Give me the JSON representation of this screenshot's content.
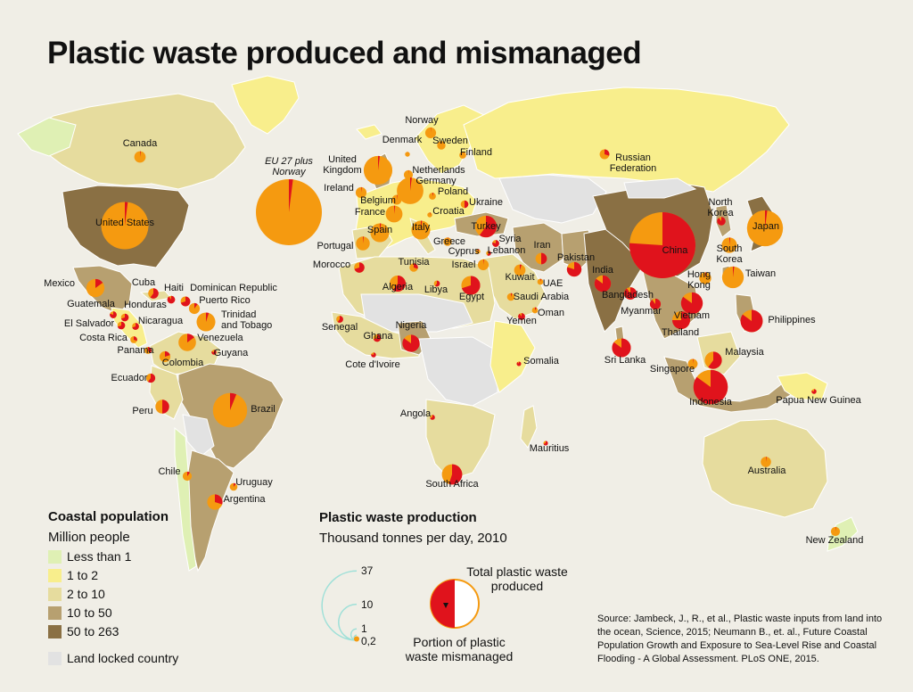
{
  "title": "Plastic waste produced and mismanaged",
  "colors": {
    "background": "#f0eee6",
    "ocean": "#f0eee6",
    "waste_total": "#f59a10",
    "waste_mismanaged": "#e0131c",
    "scale_arc": "#9fe0d8"
  },
  "coastal_legend": {
    "heading": "Coastal population",
    "unit": "Million people",
    "classes": [
      {
        "label": "Less than 1",
        "color": "#dff0b4"
      },
      {
        "label": "1 to 2",
        "color": "#f8ee8c"
      },
      {
        "label": "2 to 10",
        "color": "#e6dc9e"
      },
      {
        "label": "10 to 50",
        "color": "#b7a070"
      },
      {
        "label": "50 to 263",
        "color": "#8a7044"
      },
      {
        "label": "Land locked country",
        "color": "#e2e2e2"
      }
    ]
  },
  "production_legend": {
    "heading": "Plastic waste production",
    "unit": "Thousand tonnes per day, 2010",
    "scale_values": [
      "37",
      "10",
      "1",
      "0,2"
    ],
    "total_label_1": "Total plastic waste",
    "total_label_2": "produced",
    "mismanaged_label_1": "Portion of plastic",
    "mismanaged_label_2": "waste mismanaged"
  },
  "source": {
    "text": "Source: Jambeck, J., R., et al., Plastic waste inputs from land into the ocean, Science, 2015; Neumann B., et. al., Future Coastal Population Growth and Exposure to Sea-Level Rise and Coastal Flooding - A Global Assessment. PLoS ONE, 2015."
  },
  "countries": [
    {
      "name": "Canada",
      "total": 1.1,
      "mismanaged": 0.02
    },
    {
      "name": "United States",
      "total": 19.0,
      "mismanaged": 0.02
    },
    {
      "name": "EU 27 plus Norway",
      "total": 37.0,
      "mismanaged": 0.02
    },
    {
      "name": "Mexico",
      "total": 2.8,
      "mismanaged": 0.15
    },
    {
      "name": "Cuba",
      "total": 0.9,
      "mismanaged": 0.6
    },
    {
      "name": "Haiti",
      "total": 0.5,
      "mismanaged": 0.9
    },
    {
      "name": "Dominican Republic",
      "total": 0.8,
      "mismanaged": 0.7
    },
    {
      "name": "Puerto Rico",
      "total": 1.0,
      "mismanaged": 0.1
    },
    {
      "name": "Guatemala",
      "total": 0.4,
      "mismanaged": 0.8
    },
    {
      "name": "Honduras",
      "total": 0.5,
      "mismanaged": 0.7
    },
    {
      "name": "Nicaragua",
      "total": 0.4,
      "mismanaged": 0.7
    },
    {
      "name": "Trinidad and Tobago",
      "total": 3.0,
      "mismanaged": 0.05
    },
    {
      "name": "El Salvador",
      "total": 0.5,
      "mismanaged": 0.7
    },
    {
      "name": "Costa Rica",
      "total": 0.4,
      "mismanaged": 0.3
    },
    {
      "name": "Venezuela",
      "total": 2.6,
      "mismanaged": 0.15
    },
    {
      "name": "Panama",
      "total": 0.4,
      "mismanaged": 0.4
    },
    {
      "name": "Guyana",
      "total": 0.2,
      "mismanaged": 0.8
    },
    {
      "name": "Colombia",
      "total": 1.0,
      "mismanaged": 0.2
    },
    {
      "name": "Ecuador",
      "total": 0.7,
      "mismanaged": 0.6
    },
    {
      "name": "Peru",
      "total": 1.6,
      "mismanaged": 0.5
    },
    {
      "name": "Brazil",
      "total": 10.0,
      "mismanaged": 0.06
    },
    {
      "name": "Chile",
      "total": 0.7,
      "mismanaged": 0.1
    },
    {
      "name": "Uruguay",
      "total": 0.5,
      "mismanaged": 0.1
    },
    {
      "name": "Argentina",
      "total": 2.0,
      "mismanaged": 0.3
    },
    {
      "name": "Norway",
      "total": 1.0,
      "mismanaged": 0.01
    },
    {
      "name": "Sweden",
      "total": 0.6,
      "mismanaged": 0.01
    },
    {
      "name": "Finland",
      "total": 0.4,
      "mismanaged": 0.01
    },
    {
      "name": "Denmark",
      "total": 0.2,
      "mismanaged": 0.01
    },
    {
      "name": "United Kingdom",
      "total": 7.0,
      "mismanaged": 0.02
    },
    {
      "name": "Netherlands",
      "total": 0.7,
      "mismanaged": 0.01
    },
    {
      "name": "Germany",
      "total": 6.0,
      "mismanaged": 0.02
    },
    {
      "name": "Poland",
      "total": 0.4,
      "mismanaged": 0.05
    },
    {
      "name": "Ireland",
      "total": 1.0,
      "mismanaged": 0.02
    },
    {
      "name": "Belgium",
      "total": 0.8,
      "mismanaged": 0.02
    },
    {
      "name": "France",
      "total": 2.4,
      "mismanaged": 0.02
    },
    {
      "name": "Ukraine",
      "total": 0.5,
      "mismanaged": 0.5
    },
    {
      "name": "Croatia",
      "total": 0.2,
      "mismanaged": 0.05
    },
    {
      "name": "Spain",
      "total": 3.0,
      "mismanaged": 0.02
    },
    {
      "name": "Italy",
      "total": 3.0,
      "mismanaged": 0.02
    },
    {
      "name": "Turkey",
      "total": 4.0,
      "mismanaged": 0.6
    },
    {
      "name": "Portugal",
      "total": 1.6,
      "mismanaged": 0.02
    },
    {
      "name": "Greece",
      "total": 0.6,
      "mismanaged": 0.02
    },
    {
      "name": "Syria",
      "total": 0.4,
      "mismanaged": 0.8
    },
    {
      "name": "Cyprus",
      "total": 0.2,
      "mismanaged": 0.1
    },
    {
      "name": "Lebanon",
      "total": 0.2,
      "mismanaged": 0.6
    },
    {
      "name": "Iran",
      "total": 1.1,
      "mismanaged": 0.5
    },
    {
      "name": "Israel",
      "total": 1.0,
      "mismanaged": 0.02
    },
    {
      "name": "Morocco",
      "total": 0.9,
      "mismanaged": 0.7
    },
    {
      "name": "Tunisia",
      "total": 0.6,
      "mismanaged": 0.3
    },
    {
      "name": "Kuwait",
      "total": 1.1,
      "mismanaged": 0.05
    },
    {
      "name": "UAE",
      "total": 0.3,
      "mismanaged": 0.05
    },
    {
      "name": "Pakistan",
      "total": 1.8,
      "mismanaged": 0.8
    },
    {
      "name": "Saudi Arabia",
      "total": 0.5,
      "mismanaged": 0.05
    },
    {
      "name": "Algeria",
      "total": 2.2,
      "mismanaged": 0.6
    },
    {
      "name": "Libya",
      "total": 0.3,
      "mismanaged": 0.6
    },
    {
      "name": "Egypt",
      "total": 3.0,
      "mismanaged": 0.7
    },
    {
      "name": "Oman",
      "total": 0.3,
      "mismanaged": 0.1
    },
    {
      "name": "Yemen",
      "total": 0.4,
      "mismanaged": 0.9
    },
    {
      "name": "India",
      "total": 2.3,
      "mismanaged": 0.85
    },
    {
      "name": "Bangladesh",
      "total": 1.3,
      "mismanaged": 0.9
    },
    {
      "name": "China",
      "total": 37.0,
      "mismanaged": 0.76
    },
    {
      "name": "Russian Federation",
      "total": 0.8,
      "mismanaged": 0.3
    },
    {
      "name": "North Korea",
      "total": 0.6,
      "mismanaged": 0.9
    },
    {
      "name": "South Korea",
      "total": 2.0,
      "mismanaged": 0.02
    },
    {
      "name": "Japan",
      "total": 11.0,
      "mismanaged": 0.02
    },
    {
      "name": "Taiwan",
      "total": 4.0,
      "mismanaged": 0.02
    },
    {
      "name": "Hong Kong",
      "total": 1.2,
      "mismanaged": 0.02
    },
    {
      "name": "Myanmar",
      "total": 1.0,
      "mismanaged": 0.9
    },
    {
      "name": "Vietnam",
      "total": 4.0,
      "mismanaged": 0.85
    },
    {
      "name": "Thailand",
      "total": 2.7,
      "mismanaged": 0.75
    },
    {
      "name": "Philippines",
      "total": 4.2,
      "mismanaged": 0.85
    },
    {
      "name": "Senegal",
      "total": 0.4,
      "mismanaged": 0.6
    },
    {
      "name": "Ghana",
      "total": 0.5,
      "mismanaged": 0.7
    },
    {
      "name": "Nigeria",
      "total": 2.5,
      "mismanaged": 0.85
    },
    {
      "name": "Cote d'Ivoire",
      "total": 0.2,
      "mismanaged": 0.8
    },
    {
      "name": "Sri Lanka",
      "total": 3.0,
      "mismanaged": 0.85
    },
    {
      "name": "Malaysia",
      "total": 2.5,
      "mismanaged": 0.6
    },
    {
      "name": "Singapore",
      "total": 0.8,
      "mismanaged": 0.02
    },
    {
      "name": "Indonesia",
      "total": 10.0,
      "mismanaged": 0.85
    },
    {
      "name": "Somalia",
      "total": 0.1,
      "mismanaged": 0.9
    },
    {
      "name": "Angola",
      "total": 0.2,
      "mismanaged": 0.7
    },
    {
      "name": "Mauritius",
      "total": 0.1,
      "mismanaged": 0.7
    },
    {
      "name": "Papua New Guinea",
      "total": 0.2,
      "mismanaged": 0.8
    },
    {
      "name": "South Africa",
      "total": 3.5,
      "mismanaged": 0.55
    },
    {
      "name": "Australia",
      "total": 0.9,
      "mismanaged": 0.02
    },
    {
      "name": "New Zealand",
      "total": 0.7,
      "mismanaged": 0.02
    }
  ]
}
